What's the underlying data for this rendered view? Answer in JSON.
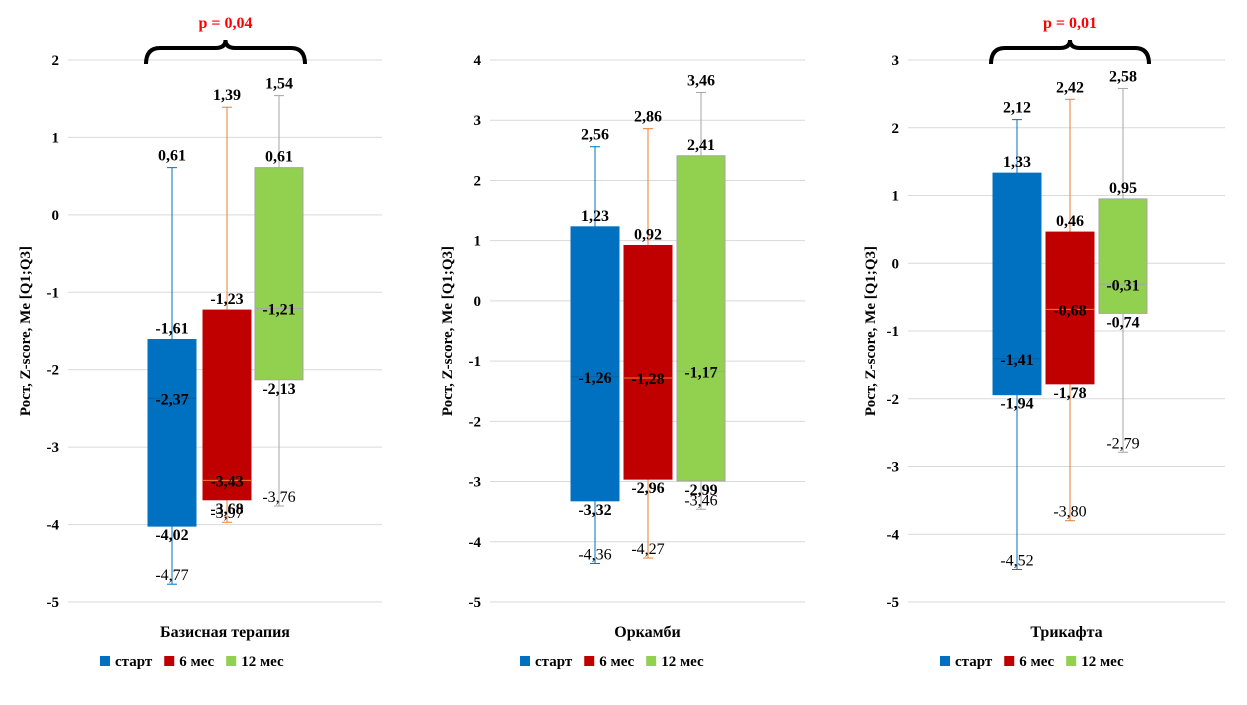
{
  "colors": {
    "start": "#0070C0",
    "m6": "#C00000",
    "m12": "#92D050",
    "whisker_start": "#0070C0",
    "whisker_m6": "#ED7D31",
    "whisker_m12": "#A5A5A5",
    "grid": "#D9D9D9",
    "pvalue": "#FF0000"
  },
  "legend": [
    "старт",
    "6 мес",
    "12 мес"
  ],
  "chart_data": [
    {
      "type": "boxplot",
      "title": "",
      "xlabel": "Базисная терапия",
      "ylabel": "Рост, Z-score, Me [Q1;Q3]",
      "ylim": [
        -5,
        2
      ],
      "yticks": [
        "-5",
        "-4",
        "-3",
        "-2",
        "-1",
        "0",
        "1",
        "2"
      ],
      "p_value": "p = 0,04",
      "series": [
        {
          "name": "старт",
          "min": -4.77,
          "q1": -4.02,
          "median": -2.37,
          "q3": -1.61,
          "max": 0.61,
          "labels": {
            "min": "-4,77",
            "q1": "-4,02",
            "median": "-2,37",
            "q3": "-1,61",
            "max": "0,61"
          }
        },
        {
          "name": "6 мес",
          "min": -3.97,
          "q1": -3.68,
          "median": -3.43,
          "q3": -1.23,
          "max": 1.39,
          "labels": {
            "min": "-3,97",
            "q1": "-3,68",
            "median": "-3,43",
            "q3": "-1,23",
            "max": "1,39"
          }
        },
        {
          "name": "12 мес",
          "min": -3.76,
          "q1": -2.13,
          "median": -1.21,
          "q3": 0.61,
          "max": 1.54,
          "labels": {
            "min": "-3,76",
            "q1": "-2,13",
            "median": "-1,21",
            "q3": "0,61",
            "max": "1,54"
          }
        }
      ]
    },
    {
      "type": "boxplot",
      "title": "",
      "xlabel": "Оркамби",
      "ylabel": "Рост, Z-score, Me [Q1;Q3]",
      "ylim": [
        -5,
        4
      ],
      "yticks": [
        "-5",
        "-4",
        "-3",
        "-2",
        "-1",
        "0",
        "1",
        "2",
        "3",
        "4"
      ],
      "p_value": "",
      "series": [
        {
          "name": "старт",
          "min": -4.36,
          "q1": -3.32,
          "median": -1.26,
          "q3": 1.23,
          "max": 2.56,
          "labels": {
            "min": "-4,36",
            "q1": "-3,32",
            "median": "-1,26",
            "q3": "1,23",
            "max": "2,56"
          }
        },
        {
          "name": "6 мес",
          "min": -4.27,
          "q1": -2.96,
          "median": -1.28,
          "q3": 0.92,
          "max": 2.86,
          "labels": {
            "min": "-4,27",
            "q1": "-2,96",
            "median": "-1,28",
            "q3": "0,92",
            "max": "2,86"
          }
        },
        {
          "name": "12 мес",
          "min": -3.46,
          "q1": -2.99,
          "median": -1.17,
          "q3": 2.41,
          "max": 3.46,
          "labels": {
            "min": "-3,46",
            "q1": "-2,99",
            "median": "-1,17",
            "q3": "2,41",
            "max": "3,46"
          }
        }
      ]
    },
    {
      "type": "boxplot",
      "title": "",
      "xlabel": "Трикафта",
      "ylabel": "Рост, Z-score, Me [Q1;Q3]",
      "ylim": [
        -5,
        3
      ],
      "yticks": [
        "-5",
        "-4",
        "-3",
        "-2",
        "-1",
        "0",
        "1",
        "2",
        "3"
      ],
      "p_value": "p = 0,01",
      "series": [
        {
          "name": "старт",
          "min": -4.52,
          "q1": -1.94,
          "median": -1.41,
          "q3": 1.33,
          "max": 2.12,
          "labels": {
            "min": "-4,52",
            "q1": "-1,94",
            "median": "-1,41",
            "q3": "1,33",
            "max": "2,12"
          }
        },
        {
          "name": "6 мес",
          "min": -3.8,
          "q1": -1.78,
          "median": -0.68,
          "q3": 0.46,
          "max": 2.42,
          "labels": {
            "min": "-3,80",
            "q1": "-1,78",
            "median": "-0,68",
            "q3": "0,46",
            "max": "2,42"
          }
        },
        {
          "name": "12 мес",
          "min": -2.79,
          "q1": -0.74,
          "median": -0.31,
          "q3": 0.95,
          "max": 2.58,
          "labels": {
            "min": "-2,79",
            "q1": "-0,74",
            "median": "-0,31",
            "q3": "0,95",
            "max": "2,58"
          }
        }
      ]
    }
  ]
}
